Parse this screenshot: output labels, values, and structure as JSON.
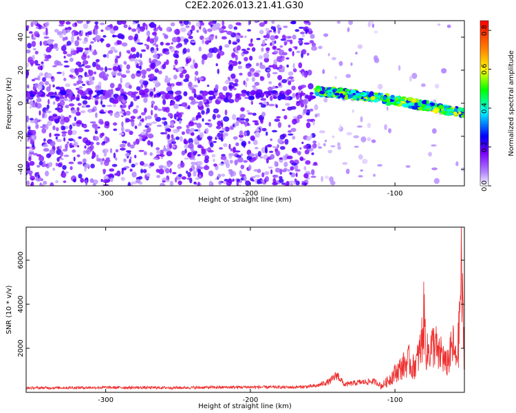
{
  "title": "C2E2.2026.013.21.41.G30",
  "chart_data": [
    {
      "type": "heatmap",
      "xlabel": "Height of straight line (km)",
      "ylabel": "Frequency (Hz)",
      "xlim": [
        -355,
        -52
      ],
      "ylim": [
        -50,
        50
      ],
      "xticks": [
        -300,
        -200,
        -100
      ],
      "yticks": [
        -40,
        -20,
        0,
        20,
        40
      ],
      "colorbar": {
        "label": "Normalized spectral amplitude",
        "range": [
          0,
          0.85
        ],
        "ticks": [
          "0.0",
          "0.2",
          "0.4",
          "0.6",
          "0.8"
        ],
        "colors": [
          "#ffffff",
          "#b388ff",
          "#7a00ff",
          "#0000ff",
          "#00ffff",
          "#00ff00",
          "#ffff00",
          "#ff8800",
          "#ff0000"
        ]
      },
      "signal_band": {
        "x_range": [
          -155,
          -52
        ],
        "frequency_start_hz": 7,
        "frequency_end_hz": -6
      }
    },
    {
      "type": "line",
      "xlabel": "Height of straight line (km)",
      "ylabel": "SNR (10 * v/v)",
      "xlim": [
        -355,
        -52
      ],
      "ylim": [
        0,
        7500
      ],
      "xticks": [
        -300,
        -200,
        -100
      ],
      "yticks": [
        2000,
        4000,
        6000
      ],
      "color": "#ee3030",
      "series": [
        {
          "x": [
            -355,
            -300,
            -250,
            -200,
            -170,
            -155,
            -145,
            -140,
            -135,
            -125,
            -115,
            -110,
            -105,
            -100,
            -95,
            -90,
            -88,
            -85,
            -82,
            -80,
            -78,
            -75,
            -72,
            -70,
            -68,
            -65,
            -62,
            -60,
            -58,
            -56,
            -55,
            -54,
            -53,
            -52
          ],
          "y": [
            200,
            220,
            210,
            240,
            230,
            280,
            500,
            800,
            350,
            450,
            500,
            350,
            700,
            1200,
            1600,
            2000,
            1500,
            1900,
            2800,
            4700,
            2400,
            2800,
            3100,
            2100,
            2600,
            1700,
            2300,
            3000,
            2000,
            3100,
            5800,
            7400,
            4200,
            2600
          ]
        }
      ]
    }
  ]
}
